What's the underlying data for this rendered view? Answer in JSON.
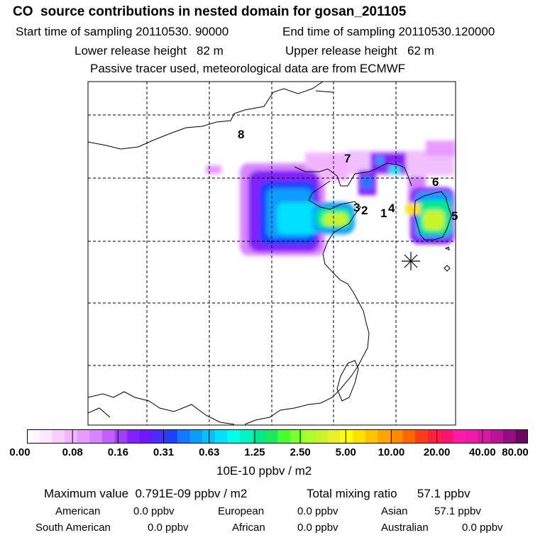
{
  "header": {
    "title": "CO  source contributions in nested domain for gosan_201105",
    "start_time": "Start time of sampling 20110530. 90000",
    "end_time": "End time of sampling 20110530.120000",
    "lower_release": "Lower release height   82 m",
    "upper_release": "Upper release height   62 m",
    "tracer_note": "Passive tracer used, meteorological data are from ECMWF"
  },
  "map": {
    "labels": [
      "8",
      "7",
      "6",
      "3",
      "2",
      "1",
      "4",
      "5"
    ],
    "receptor_marker": "asterisk"
  },
  "colorbar": {
    "ticks": [
      "0.00",
      "0.08",
      "0.16",
      "0.31",
      "0.63",
      "1.25",
      "2.50",
      "5.00",
      "10.00",
      "20.00",
      "40.00",
      "80.00"
    ],
    "units": "10E-10 ppbv / m2",
    "colors": [
      "#fff6ff",
      "#fde6ff",
      "#f8cdff",
      "#f3b4ff",
      "#e99aff",
      "#d884ff",
      "#c261ff",
      "#a43cff",
      "#8320ff",
      "#6b18ff",
      "#4a2cff",
      "#1f40ff",
      "#1278ff",
      "#0a9cff",
      "#08c2ff",
      "#06e0ff",
      "#00ffe8",
      "#00f5c0",
      "#00ea8c",
      "#1be85a",
      "#45ff2e",
      "#7cff2a",
      "#a8ff2a",
      "#c8f52a",
      "#e8f02a",
      "#ffff00",
      "#ffe100",
      "#ffc400",
      "#ffa500",
      "#ff8a00",
      "#ff6600",
      "#ff3d1a",
      "#ff2040",
      "#ff1270",
      "#ff1aa3",
      "#f01aa8",
      "#d61aa0",
      "#b81494",
      "#930e82",
      "#6a0860"
    ]
  },
  "summary": {
    "max_value": "Maximum value  0.791E-09 ppbv / m2",
    "total": "Total mixing ratio      57.1 ppbv"
  },
  "regions": [
    {
      "name": "American",
      "value": "0.0 ppbv"
    },
    {
      "name": "European",
      "value": "0.0 ppbv"
    },
    {
      "name": "Asian",
      "value": "57.1 ppbv"
    },
    {
      "name": "South American",
      "value": "0.0 ppbv"
    },
    {
      "name": "African",
      "value": "0.0 ppbv"
    },
    {
      "name": "Australian",
      "value": "0.0 ppbv"
    }
  ]
}
